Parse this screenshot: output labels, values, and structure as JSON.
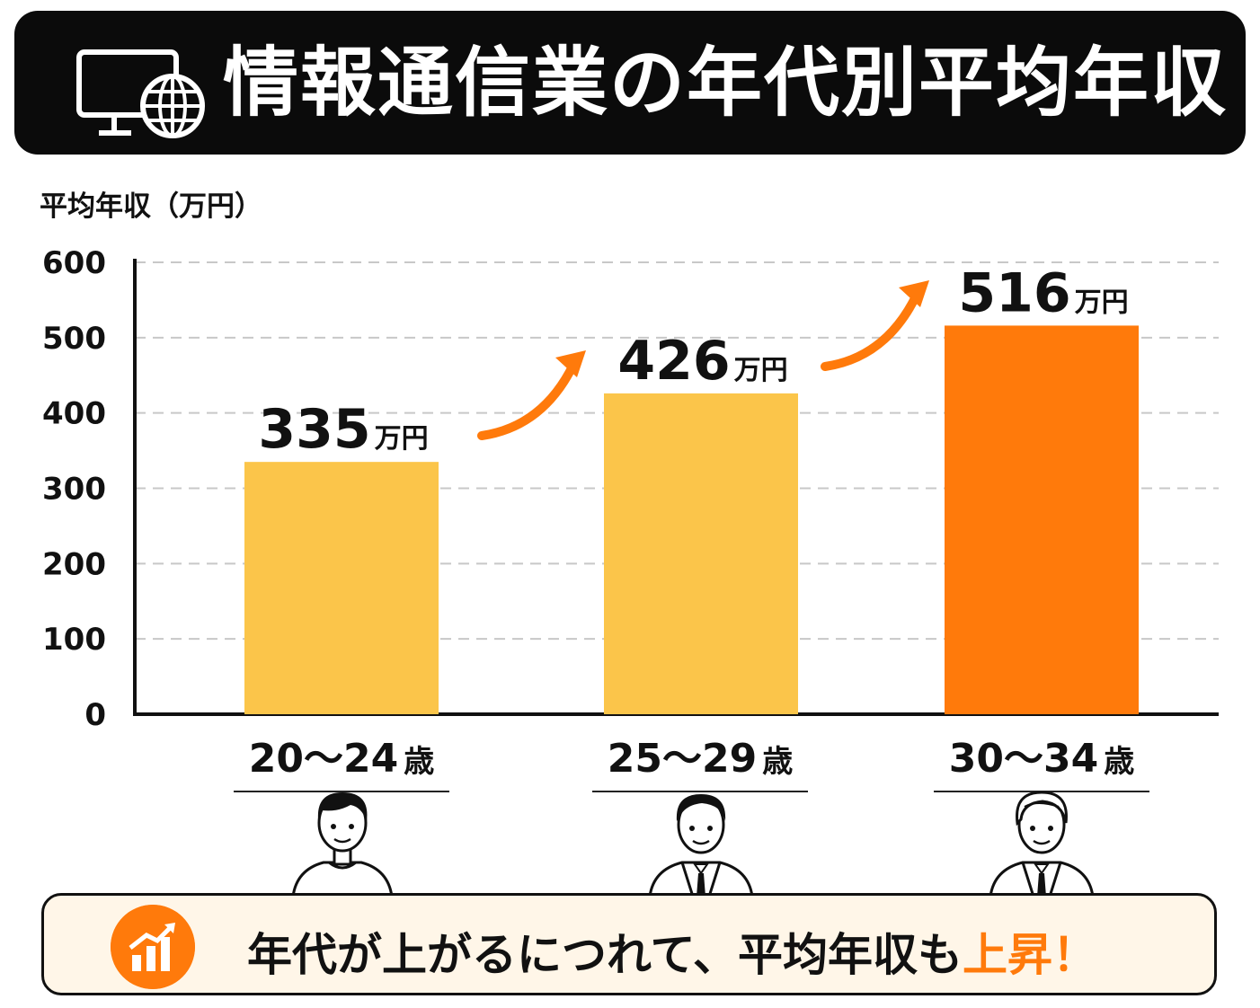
{
  "title": "情報通信業の年代別平均年収",
  "colors": {
    "title_bg": "#0b0b0b",
    "bar_light": "#fbc54a",
    "bar_accent": "#ff7a0b",
    "arrow": "#ff7a0b",
    "summary_bg": "#fff6e8"
  },
  "icons": {
    "title": "monitor-globe-icon",
    "summary": "growth-chart-icon",
    "people": [
      "young-man-tshirt-icon",
      "man-suit-icon",
      "older-man-suit-icon"
    ]
  },
  "chart_data": {
    "type": "bar",
    "ylabel": "平均年収（万円）",
    "ylim": [
      0,
      600
    ],
    "yticks": [
      0,
      100,
      200,
      300,
      400,
      500,
      600
    ],
    "grid": true,
    "categories": [
      "20〜24歳",
      "25〜29歳",
      "30〜34歳"
    ],
    "category_parts": [
      {
        "range": "20〜24",
        "suffix": "歳"
      },
      {
        "range": "25〜29",
        "suffix": "歳"
      },
      {
        "range": "30〜34",
        "suffix": "歳"
      }
    ],
    "values": [
      335,
      426,
      516
    ],
    "value_unit": "万円",
    "bar_colors": [
      "#fbc54a",
      "#fbc54a",
      "#ff7a0b"
    ],
    "annotations": [
      "increase-arrow",
      "increase-arrow"
    ]
  },
  "summary": {
    "text": "年代が上がるにつれて、平均年収も",
    "highlight": "上昇！"
  }
}
